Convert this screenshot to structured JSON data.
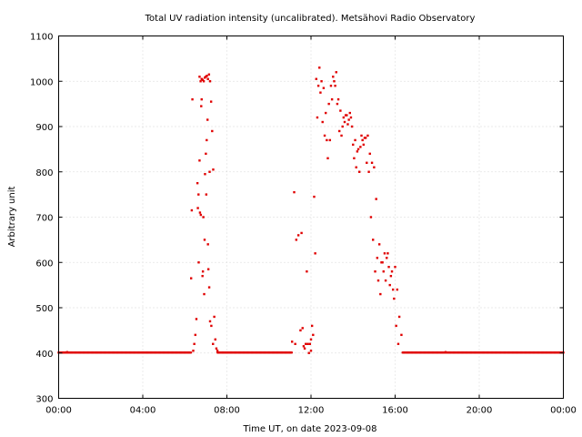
{
  "chart_data": {
    "type": "scatter",
    "title": "Total UV radiation intensity (uncalibrated). Metsähovi Radio Observatory",
    "xlabel": "Time UT, on date 2023-09-08",
    "ylabel": "Arbitrary unit",
    "x_unit": "hours",
    "xlim": [
      0,
      24
    ],
    "ylim": [
      300,
      1100
    ],
    "x_ticks": [
      0,
      4,
      8,
      12,
      16,
      20,
      24
    ],
    "x_tick_labels": [
      "00:00",
      "04:00",
      "08:00",
      "12:00",
      "16:00",
      "20:00",
      "00:00"
    ],
    "y_ticks": [
      300,
      400,
      500,
      600,
      700,
      800,
      900,
      1000,
      1100
    ],
    "y_tick_labels": [
      "300",
      "400",
      "500",
      "600",
      "700",
      "800",
      "900",
      "1000",
      "1100"
    ],
    "grid": true,
    "marker_color": "#e00000",
    "series": [
      {
        "x": [
          0.0,
          0.2,
          0.4,
          0.6,
          0.8,
          1.0,
          1.2,
          1.4,
          1.6,
          1.8,
          2.0,
          2.2,
          2.4,
          2.6,
          2.8,
          3.0,
          3.2,
          3.4,
          3.6,
          3.8,
          4.0,
          4.2,
          4.4,
          4.6,
          4.8,
          5.0,
          5.2,
          5.4,
          5.6,
          5.8,
          6.0,
          6.2,
          6.3,
          6.33,
          6.36,
          6.4,
          6.45,
          6.5,
          6.55,
          6.6,
          6.65,
          6.7,
          6.75,
          6.8,
          6.85,
          6.9,
          6.95,
          7.0,
          7.05,
          7.1,
          7.15,
          7.2,
          7.25,
          7.3,
          7.35,
          7.4,
          7.45,
          7.5,
          7.55,
          6.72,
          6.76,
          6.8,
          6.84,
          6.88,
          6.92,
          6.96,
          7.0,
          7.04,
          7.08,
          7.12,
          7.16,
          7.2,
          6.62,
          6.66,
          6.7,
          6.78,
          6.86,
          6.94,
          7.02,
          7.1,
          7.18,
          7.26,
          7.34,
          7.6,
          7.8,
          8.0,
          8.2,
          8.4,
          8.6,
          8.8,
          9.0,
          9.2,
          9.4,
          9.6,
          9.8,
          10.0,
          10.2,
          10.4,
          10.6,
          10.8,
          11.0,
          11.1,
          11.2,
          11.4,
          11.5,
          11.6,
          11.7,
          11.8,
          11.9,
          12.0,
          12.1,
          12.2,
          12.3,
          12.4,
          12.5,
          12.6,
          12.7,
          12.8,
          12.9,
          13.0,
          13.1,
          13.2,
          13.3,
          13.4,
          13.5,
          13.6,
          13.7,
          13.8,
          13.9,
          14.0,
          14.1,
          14.2,
          14.3,
          14.4,
          14.5,
          14.6,
          14.7,
          14.8,
          14.9,
          15.0,
          15.1,
          15.2,
          15.3,
          15.4,
          15.5,
          15.6,
          15.7,
          15.8,
          15.9,
          16.0,
          16.1,
          16.2,
          16.3,
          12.05,
          12.15,
          12.25,
          12.35,
          12.45,
          12.55,
          12.65,
          12.75,
          12.85,
          12.95,
          13.05,
          13.15,
          13.25,
          13.35,
          13.45,
          13.55,
          13.65,
          13.75,
          13.85,
          13.95,
          14.05,
          14.15,
          14.25,
          14.35,
          14.45,
          14.55,
          14.65,
          14.75,
          14.85,
          14.95,
          15.05,
          15.15,
          15.25,
          15.35,
          15.45,
          15.55,
          15.65,
          15.75,
          15.85,
          15.95,
          16.05,
          16.15,
          11.25,
          11.3,
          11.55,
          11.65,
          11.75,
          11.85,
          11.95,
          12.0,
          16.4,
          16.6,
          16.8,
          17.0,
          17.2,
          17.4,
          17.6,
          17.8,
          18.0,
          18.2,
          18.4,
          18.6,
          18.8,
          19.0,
          19.2,
          19.4,
          19.6,
          19.8,
          20.0,
          20.2,
          20.4,
          20.6,
          20.8,
          21.0,
          21.2,
          21.4,
          21.6,
          21.8,
          22.0,
          22.2,
          22.4,
          22.6,
          22.8,
          23.0,
          23.2,
          23.4,
          23.6,
          23.8,
          24.0
        ],
        "y": [
          401,
          401,
          402,
          401,
          401,
          401,
          401,
          401,
          401,
          401,
          401,
          401,
          401,
          401,
          401,
          401,
          401,
          401,
          401,
          401,
          401,
          401,
          401,
          401,
          401,
          401,
          401,
          401,
          401,
          401,
          401,
          401,
          565,
          715,
          960,
          405,
          420,
          440,
          475,
          775,
          750,
          1010,
          1000,
          1005,
          1003,
          1000,
          1008,
          1010,
          1012,
          1005,
          1015,
          1000,
          955,
          890,
          805,
          480,
          430,
          410,
          405,
          710,
          705,
          960,
          570,
          700,
          530,
          795,
          840,
          870,
          915,
          585,
          545,
          470,
          720,
          600,
          825,
          945,
          580,
          650,
          750,
          640,
          800,
          460,
          420,
          401,
          401,
          401,
          401,
          401,
          401,
          401,
          401,
          401,
          401,
          401,
          401,
          401,
          401,
          401,
          401,
          401,
          401,
          425,
          755,
          660,
          450,
          455,
          410,
          580,
          400,
          405,
          440,
          620,
          920,
          1030,
          1000,
          985,
          930,
          830,
          870,
          960,
          1000,
          1020,
          960,
          935,
          900,
          910,
          925,
          915,
          920,
          860,
          870,
          845,
          800,
          880,
          860,
          875,
          880,
          840,
          820,
          810,
          740,
          560,
          530,
          600,
          620,
          610,
          590,
          570,
          540,
          590,
          540,
          480,
          440,
          460,
          745,
          1005,
          990,
          975,
          910,
          880,
          870,
          950,
          990,
          1010,
          990,
          950,
          890,
          880,
          920,
          925,
          905,
          930,
          900,
          830,
          810,
          850,
          855,
          870,
          875,
          820,
          800,
          700,
          650,
          580,
          610,
          640,
          600,
          580,
          560,
          620,
          550,
          580,
          520,
          460,
          420,
          420,
          650,
          665,
          415,
          420,
          420,
          420,
          430,
          401,
          401,
          401,
          401,
          401,
          401,
          401,
          401,
          401,
          401,
          402,
          401,
          401,
          401,
          401,
          401,
          401,
          401,
          401,
          401,
          401,
          401,
          401,
          401,
          401,
          401,
          401,
          401,
          401,
          401,
          401,
          401,
          401,
          401,
          401,
          401,
          401,
          401,
          401
        ]
      }
    ]
  }
}
